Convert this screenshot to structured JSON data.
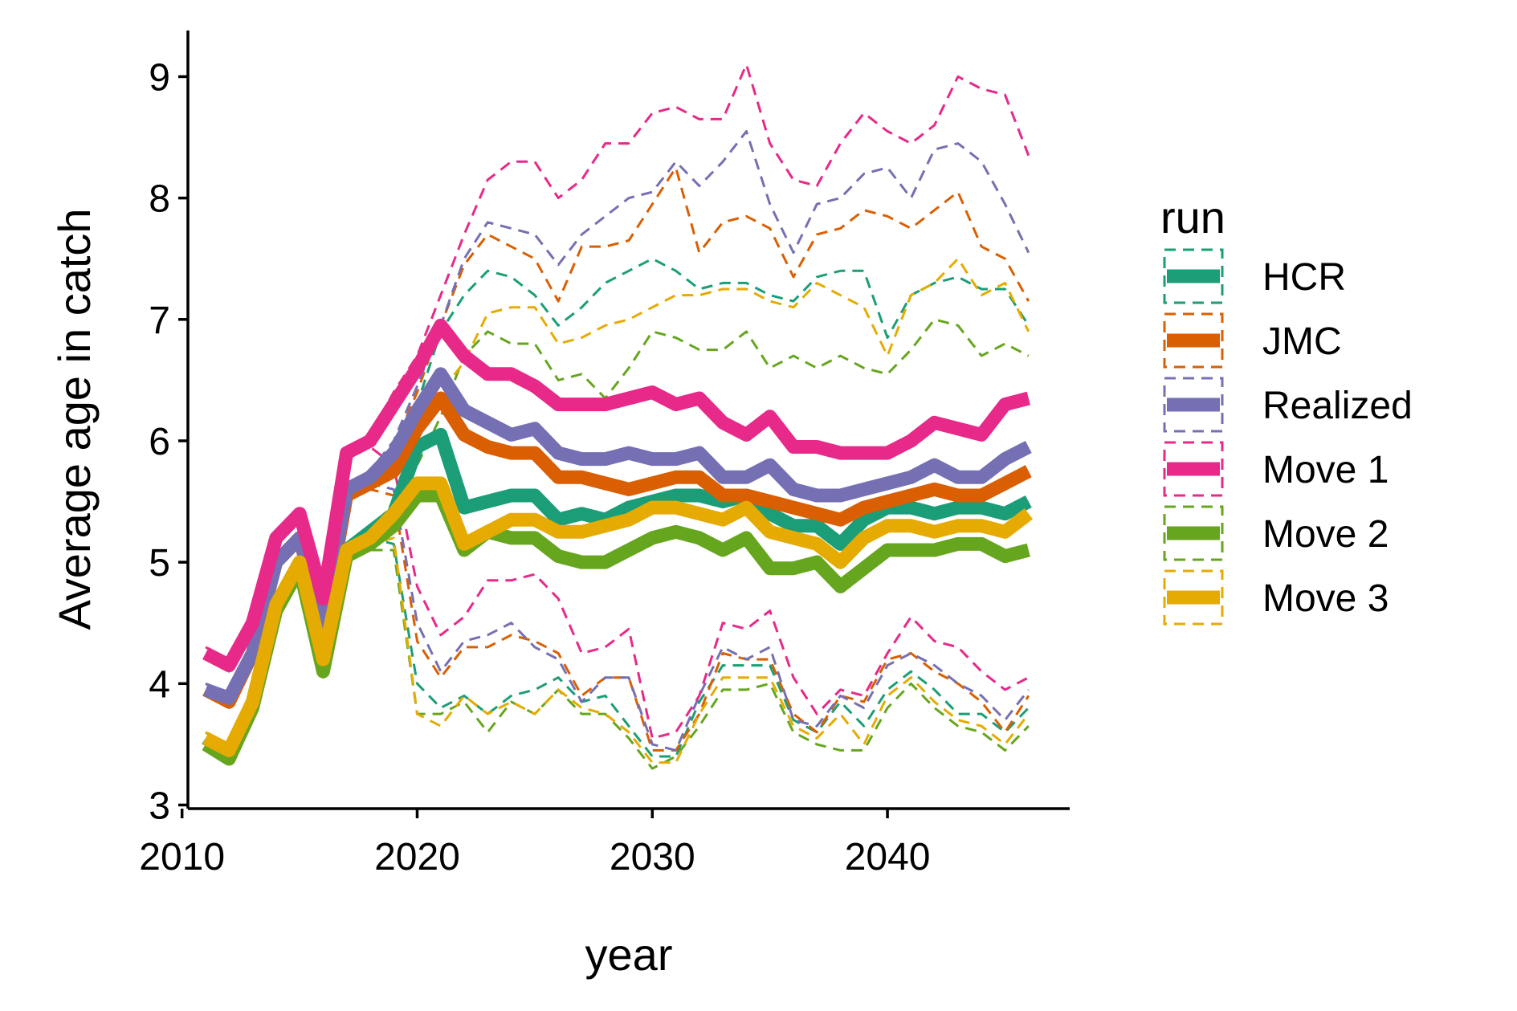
{
  "chart_data": {
    "type": "line",
    "xlabel": "year",
    "ylabel": "Average age in catch",
    "xlim": [
      2010.25,
      2047.75
    ],
    "ylim": [
      2.97,
      9.38
    ],
    "x_ticks": [
      2010,
      2020,
      2030,
      2040
    ],
    "y_ticks": [
      3,
      4,
      5,
      6,
      7,
      8,
      9
    ],
    "grid": false,
    "legend": {
      "title": "run",
      "position": "right"
    },
    "x": [
      2011,
      2012,
      2013,
      2014,
      2015,
      2016,
      2017,
      2018,
      2019,
      2020,
      2021,
      2022,
      2023,
      2024,
      2025,
      2026,
      2027,
      2028,
      2029,
      2030,
      2031,
      2032,
      2033,
      2034,
      2035,
      2036,
      2037,
      2038,
      2039,
      2040,
      2041,
      2042,
      2043,
      2044,
      2045,
      2046
    ],
    "series": [
      {
        "name": "HCR",
        "color": "#1B9E77",
        "values": [
          3.55,
          3.42,
          3.85,
          4.65,
          5.0,
          4.15,
          5.1,
          5.25,
          5.4,
          5.95,
          6.05,
          5.45,
          5.5,
          5.55,
          5.55,
          5.35,
          5.4,
          5.35,
          5.45,
          5.5,
          5.55,
          5.55,
          5.5,
          5.55,
          5.4,
          5.3,
          5.3,
          5.15,
          5.35,
          5.45,
          5.45,
          5.4,
          5.45,
          5.45,
          5.4,
          5.5
        ],
        "upper": [
          3.6,
          3.45,
          3.9,
          4.7,
          5.05,
          4.2,
          5.6,
          5.65,
          5.9,
          6.3,
          6.9,
          7.2,
          7.4,
          7.35,
          7.2,
          6.95,
          7.1,
          7.3,
          7.4,
          7.5,
          7.4,
          7.25,
          7.3,
          7.3,
          7.2,
          7.15,
          7.35,
          7.4,
          7.4,
          6.85,
          7.2,
          7.3,
          7.35,
          7.25,
          7.25,
          6.95
        ],
        "lower": [
          3.5,
          3.4,
          3.8,
          4.6,
          4.95,
          4.1,
          5.05,
          5.2,
          5.15,
          4.0,
          3.8,
          3.9,
          3.75,
          3.9,
          3.95,
          4.05,
          3.85,
          3.9,
          3.65,
          3.4,
          3.4,
          3.85,
          4.15,
          4.15,
          4.15,
          3.7,
          3.6,
          3.85,
          3.65,
          3.95,
          4.1,
          3.95,
          3.75,
          3.75,
          3.6,
          3.8
        ]
      },
      {
        "name": "JMC",
        "color": "#D95F02",
        "values": [
          3.95,
          3.85,
          4.25,
          5.0,
          5.2,
          4.45,
          5.55,
          5.65,
          5.75,
          6.1,
          6.35,
          6.05,
          5.95,
          5.9,
          5.9,
          5.7,
          5.7,
          5.65,
          5.6,
          5.65,
          5.7,
          5.7,
          5.55,
          5.55,
          5.5,
          5.45,
          5.4,
          5.35,
          5.45,
          5.5,
          5.55,
          5.6,
          5.55,
          5.55,
          5.65,
          5.75
        ],
        "upper": [
          4.0,
          3.9,
          4.3,
          5.05,
          5.25,
          4.5,
          5.6,
          5.7,
          5.95,
          6.4,
          6.95,
          7.45,
          7.7,
          7.6,
          7.5,
          7.15,
          7.6,
          7.6,
          7.65,
          7.95,
          8.25,
          7.55,
          7.8,
          7.85,
          7.75,
          7.35,
          7.7,
          7.75,
          7.9,
          7.85,
          7.75,
          7.9,
          8.05,
          7.6,
          7.5,
          7.15
        ],
        "lower": [
          3.9,
          3.8,
          4.2,
          4.95,
          5.15,
          4.4,
          5.5,
          5.6,
          5.55,
          4.35,
          4.05,
          4.3,
          4.3,
          4.4,
          4.35,
          4.25,
          3.9,
          4.05,
          4.05,
          3.45,
          3.45,
          3.75,
          4.25,
          4.2,
          4.2,
          3.75,
          3.6,
          3.9,
          3.85,
          4.2,
          4.25,
          4.1,
          4.0,
          3.85,
          3.6,
          3.9
        ]
      },
      {
        "name": "Realized",
        "color": "#7570B3",
        "values": [
          3.95,
          3.88,
          4.25,
          5.0,
          5.2,
          4.45,
          5.6,
          5.7,
          5.9,
          6.25,
          6.55,
          6.25,
          6.15,
          6.05,
          6.1,
          5.9,
          5.85,
          5.85,
          5.9,
          5.85,
          5.85,
          5.9,
          5.7,
          5.7,
          5.8,
          5.6,
          5.55,
          5.55,
          5.6,
          5.65,
          5.7,
          5.8,
          5.7,
          5.7,
          5.85,
          5.95
        ],
        "upper": [
          4.0,
          3.92,
          4.3,
          5.05,
          5.25,
          4.5,
          5.65,
          5.75,
          6.0,
          6.45,
          6.95,
          7.5,
          7.8,
          7.75,
          7.7,
          7.45,
          7.7,
          7.85,
          8.0,
          8.05,
          8.3,
          8.1,
          8.3,
          8.55,
          7.95,
          7.55,
          7.95,
          8.0,
          8.2,
          8.25,
          8.0,
          8.4,
          8.45,
          8.3,
          7.95,
          7.55
        ],
        "lower": [
          3.9,
          3.85,
          4.2,
          4.95,
          5.15,
          4.4,
          5.55,
          5.65,
          5.6,
          4.5,
          4.1,
          4.35,
          4.4,
          4.5,
          4.3,
          4.2,
          3.85,
          4.05,
          4.05,
          3.5,
          3.45,
          3.9,
          4.3,
          4.2,
          4.3,
          3.7,
          3.65,
          3.9,
          3.8,
          4.15,
          4.25,
          4.15,
          4.0,
          3.9,
          3.7,
          3.95
        ]
      },
      {
        "name": "Move 1",
        "color": "#E7298A",
        "values": [
          4.25,
          4.15,
          4.5,
          5.2,
          5.4,
          4.7,
          5.9,
          6.0,
          6.3,
          6.6,
          6.95,
          6.7,
          6.55,
          6.55,
          6.45,
          6.3,
          6.3,
          6.3,
          6.35,
          6.4,
          6.3,
          6.35,
          6.15,
          6.05,
          6.2,
          5.95,
          5.95,
          5.9,
          5.9,
          5.9,
          6.0,
          6.15,
          6.1,
          6.05,
          6.3,
          6.35
        ],
        "upper": [
          4.3,
          4.2,
          4.55,
          5.25,
          5.45,
          4.75,
          5.95,
          6.05,
          6.4,
          6.7,
          7.2,
          7.7,
          8.15,
          8.3,
          8.3,
          8.0,
          8.15,
          8.45,
          8.45,
          8.7,
          8.75,
          8.65,
          8.65,
          9.1,
          8.45,
          8.15,
          8.1,
          8.45,
          8.7,
          8.55,
          8.45,
          8.6,
          9.0,
          8.9,
          8.85,
          8.35
        ],
        "lower": [
          4.2,
          4.1,
          4.45,
          5.15,
          5.35,
          4.65,
          5.85,
          5.95,
          5.8,
          4.8,
          4.4,
          4.55,
          4.85,
          4.85,
          4.9,
          4.7,
          4.25,
          4.3,
          4.45,
          3.55,
          3.6,
          3.9,
          4.5,
          4.45,
          4.6,
          4.05,
          3.75,
          3.95,
          3.9,
          4.25,
          4.55,
          4.35,
          4.3,
          4.1,
          3.95,
          4.05
        ]
      },
      {
        "name": "Move 2",
        "color": "#66A61E",
        "values": [
          3.5,
          3.38,
          3.8,
          4.6,
          4.95,
          4.1,
          5.05,
          5.15,
          5.3,
          5.55,
          5.55,
          5.1,
          5.25,
          5.2,
          5.2,
          5.05,
          5.0,
          5.0,
          5.1,
          5.2,
          5.25,
          5.2,
          5.1,
          5.2,
          4.95,
          4.95,
          5.0,
          4.8,
          4.95,
          5.1,
          5.1,
          5.1,
          5.15,
          5.15,
          5.05,
          5.1
        ],
        "upper": [
          3.55,
          3.42,
          3.85,
          4.65,
          5.0,
          4.15,
          5.1,
          5.2,
          5.4,
          5.8,
          6.2,
          6.7,
          6.9,
          6.8,
          6.8,
          6.5,
          6.55,
          6.35,
          6.6,
          6.9,
          6.85,
          6.75,
          6.75,
          6.9,
          6.6,
          6.7,
          6.6,
          6.7,
          6.6,
          6.55,
          6.75,
          7.0,
          6.95,
          6.7,
          6.8,
          6.7
        ],
        "lower": [
          3.45,
          3.35,
          3.75,
          4.55,
          4.9,
          4.05,
          5.0,
          5.1,
          5.1,
          3.75,
          3.75,
          3.85,
          3.6,
          3.85,
          3.75,
          3.95,
          3.75,
          3.75,
          3.55,
          3.3,
          3.4,
          3.65,
          3.95,
          3.95,
          4.0,
          3.6,
          3.5,
          3.45,
          3.45,
          3.8,
          4.0,
          3.8,
          3.65,
          3.6,
          3.45,
          3.65
        ]
      },
      {
        "name": "Move 3",
        "color": "#E6AB02",
        "values": [
          3.55,
          3.45,
          3.85,
          4.65,
          5.0,
          4.2,
          5.1,
          5.2,
          5.4,
          5.65,
          5.65,
          5.15,
          5.25,
          5.35,
          5.35,
          5.25,
          5.25,
          5.3,
          5.35,
          5.45,
          5.45,
          5.4,
          5.35,
          5.45,
          5.25,
          5.2,
          5.15,
          5.0,
          5.2,
          5.3,
          5.3,
          5.25,
          5.3,
          5.3,
          5.25,
          5.4
        ],
        "upper": [
          3.6,
          3.5,
          3.9,
          4.7,
          5.05,
          4.25,
          5.15,
          5.25,
          5.5,
          6.0,
          6.4,
          6.65,
          7.05,
          7.1,
          7.1,
          6.8,
          6.85,
          6.95,
          7.0,
          7.1,
          7.2,
          7.2,
          7.25,
          7.25,
          7.15,
          7.1,
          7.3,
          7.2,
          7.1,
          6.7,
          7.2,
          7.3,
          7.5,
          7.2,
          7.3,
          6.9
        ],
        "lower": [
          3.5,
          3.4,
          3.8,
          4.6,
          4.95,
          4.15,
          5.05,
          5.15,
          5.2,
          3.75,
          3.65,
          3.9,
          3.75,
          3.85,
          3.75,
          3.95,
          3.8,
          3.75,
          3.6,
          3.35,
          3.35,
          3.75,
          4.05,
          4.05,
          4.05,
          3.65,
          3.55,
          3.75,
          3.5,
          3.9,
          4.05,
          3.85,
          3.7,
          3.65,
          3.5,
          3.75
        ]
      }
    ]
  }
}
